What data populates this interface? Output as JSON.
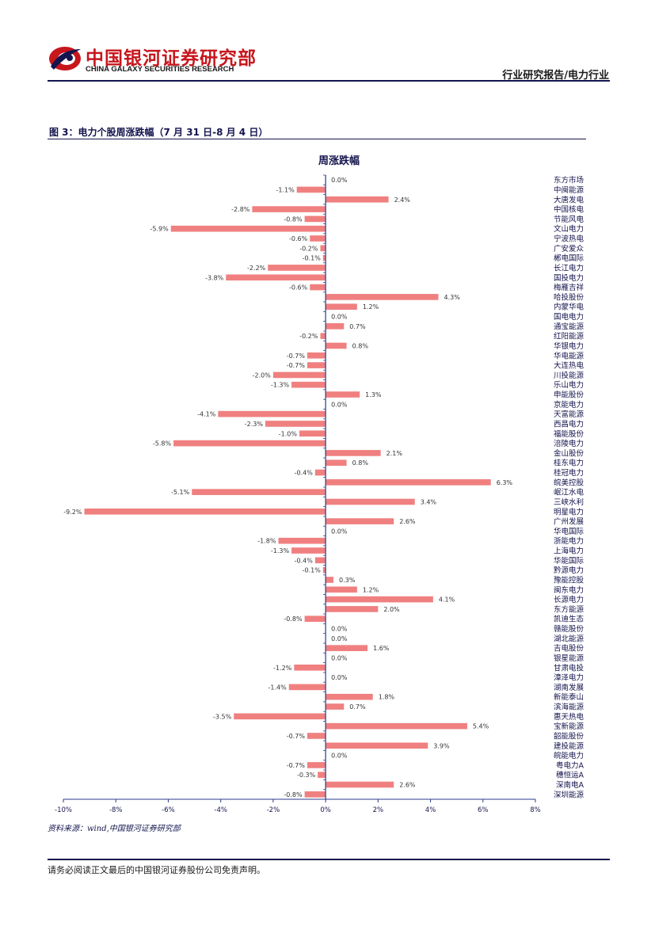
{
  "header": {
    "brand_cn": "中国银河证券研究部",
    "brand_en": "CHINA GALAXY SECURITIES RESEARCH",
    "report_category": "行业研究报告/电力行业"
  },
  "figure": {
    "title": "图 3：电力个股周涨跌幅（7 月 31 日-8 月 4 日）",
    "source": "资料来源：wind,中国银河证券研究部"
  },
  "footer": {
    "disclaimer": "请务必阅读正文最后的中国银河证券股份公司免责声明。"
  },
  "colors": {
    "bar": "#f08080",
    "axis": "#2a3a8c",
    "brand_red": "#c8161d",
    "navy": "#14144e"
  },
  "chart_data": {
    "type": "bar",
    "orientation": "horizontal",
    "title": "周涨跌幅",
    "xlim": [
      -10,
      8
    ],
    "xticks": [
      "-10%",
      "-8%",
      "-6%",
      "-4%",
      "-2%",
      "0%",
      "2%",
      "4%",
      "6%",
      "8%"
    ],
    "xtick_values": [
      -10,
      -8,
      -6,
      -4,
      -2,
      0,
      2,
      4,
      6,
      8
    ],
    "categories": [
      "东方市场",
      "中闽能源",
      "大唐发电",
      "中国核电",
      "节能风电",
      "文山电力",
      "宁波热电",
      "广安爱众",
      "郴电国际",
      "长江电力",
      "国投电力",
      "梅雁吉祥",
      "哈投股份",
      "内蒙华电",
      "国电电力",
      "通宝能源",
      "红阳能源",
      "华银电力",
      "华电能源",
      "大连热电",
      "川投能源",
      "乐山电力",
      "申能股份",
      "京能电力",
      "天富能源",
      "西昌电力",
      "福能股份",
      "涪陵电力",
      "金山股份",
      "桂东电力",
      "桂冠电力",
      "皖美控股",
      "岷江水电",
      "三峡水利",
      "明星电力",
      "广州发展",
      "华电国际",
      "浙能电力",
      "上海电力",
      "华能国际",
      "黔源电力",
      "豫能控股",
      "闽东电力",
      "长源电力",
      "东方能源",
      "凯迪生态",
      "赣能股份",
      "湖北能源",
      "吉电股份",
      "银星能源",
      "甘肃电投",
      "漳泽电力",
      "湖南发展",
      "新能泰山",
      "滨海能源",
      "惠天热电",
      "宝新能源",
      "韶能股份",
      "建投能源",
      "皖能电力",
      "粤电力A",
      "穗恒运A",
      "深南电A",
      "深圳能源"
    ],
    "values": [
      0.0,
      -1.1,
      2.4,
      -2.8,
      -0.8,
      -5.9,
      -0.6,
      -0.2,
      -0.1,
      -2.2,
      -3.8,
      -0.6,
      4.3,
      1.2,
      0.0,
      0.7,
      -0.2,
      0.8,
      -0.7,
      -0.7,
      -2.0,
      -1.3,
      1.3,
      0.0,
      -4.1,
      -2.3,
      -1.0,
      -5.8,
      2.1,
      0.8,
      -0.4,
      6.3,
      -5.1,
      3.4,
      -9.2,
      2.6,
      0.0,
      -1.8,
      -1.3,
      -0.4,
      -0.1,
      0.3,
      1.2,
      4.1,
      2.0,
      -0.8,
      0.0,
      0.0,
      1.6,
      0.0,
      -1.2,
      0.0,
      -1.4,
      1.8,
      0.7,
      -3.5,
      5.4,
      -0.7,
      3.9,
      0.0,
      -0.7,
      -0.3,
      2.6,
      -0.8
    ],
    "value_labels": [
      "0.0%",
      "-1.1%",
      "2.4%",
      "-2.8%",
      "-0.8%",
      "-5.9%",
      "-0.6%",
      "-0.2%",
      "-0.1%",
      "-2.2%",
      "-3.8%",
      "-0.6%",
      "4.3%",
      "1.2%",
      "0.0%",
      "0.7%",
      "-0.2%",
      "0.8%",
      "-0.7%",
      "-0.7%",
      "-2.0%",
      "-1.3%",
      "1.3%",
      "0.0%",
      "-4.1%",
      "-2.3%",
      "-1.0%",
      "-5.8%",
      "2.1%",
      "0.8%",
      "-0.4%",
      "6.3%",
      "-5.1%",
      "3.4%",
      "-9.2%",
      "2.6%",
      "0.0%",
      "-1.8%",
      "-1.3%",
      "-0.4%",
      "-0.1%",
      "0.3%",
      "1.2%",
      "4.1%",
      "2.0%",
      "-0.8%",
      "0.0%",
      "0.0%",
      "1.6%",
      "0.0%",
      "-1.2%",
      "0.0%",
      "-1.4%",
      "1.8%",
      "0.7%",
      "-3.5%",
      "5.4%",
      "-0.7%",
      "3.9%",
      "0.0%",
      "-0.7%",
      "-0.3%",
      "2.6%",
      "-0.8%"
    ]
  }
}
